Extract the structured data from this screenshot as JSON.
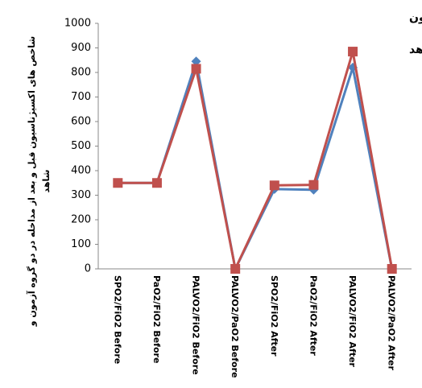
{
  "chart_data": {
    "type": "line",
    "annotations": [
      "قرمز: گروه آزمون",
      "آبی: گروه شاهد"
    ],
    "y_label": [
      "شاخص های اکسیژناسیون قبل و بعد از مداخله در دو گروه آزمون و",
      "شاهد"
    ],
    "categories": [
      "SPO2/FiO2 Before",
      "PaO2/FiO2 Before",
      "PALVO2/FiO2 Before",
      "PALVO2/PaO2 Before",
      "SPO2/FiO2 After",
      "PaO2/FiO2 After",
      "PALVO2/FiO2 After",
      "PALVO2/PaO2 After"
    ],
    "series": [
      {
        "color": "#4f81bd",
        "marker": "diamond",
        "values": [
          350,
          350,
          845,
          0,
          325,
          322,
          820,
          0
        ]
      },
      {
        "color": "#c0504d",
        "marker": "square",
        "values": [
          350,
          350,
          815,
          0,
          340,
          342,
          885,
          0
        ]
      }
    ],
    "ylim": [
      0,
      1000
    ],
    "yticks": [
      0,
      100,
      200,
      300,
      400,
      500,
      600,
      700,
      800,
      900,
      1000
    ],
    "grid": false
  }
}
